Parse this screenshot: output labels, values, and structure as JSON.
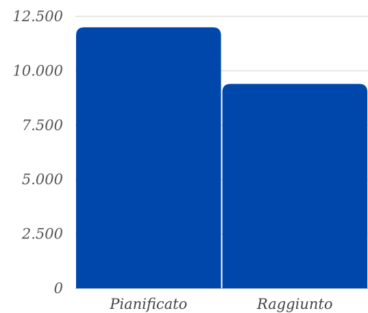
{
  "chart_data": {
    "type": "bar",
    "title": "",
    "xlabel": "",
    "ylabel": "",
    "categories": [
      "Pianificato",
      "Raggiunto"
    ],
    "values": [
      12000,
      9400
    ],
    "ylim": [
      0,
      12500
    ],
    "yticks": [
      {
        "value": 0,
        "label": "0"
      },
      {
        "value": 2500,
        "label": "2.500"
      },
      {
        "value": 5000,
        "label": "5.000"
      },
      {
        "value": 7500,
        "label": "7.500"
      },
      {
        "value": 10000,
        "label": "10.000"
      },
      {
        "value": 12500,
        "label": "12.500"
      }
    ],
    "grid": true,
    "legend": "none",
    "bar_color": "#0047AB"
  }
}
